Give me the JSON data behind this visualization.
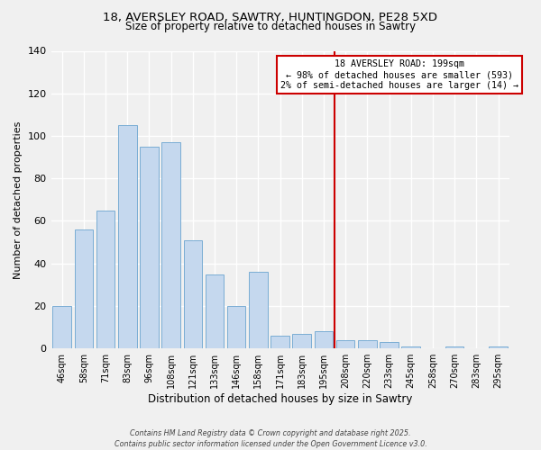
{
  "title_line1": "18, AVERSLEY ROAD, SAWTRY, HUNTINGDON, PE28 5XD",
  "title_line2": "Size of property relative to detached houses in Sawtry",
  "xlabel": "Distribution of detached houses by size in Sawtry",
  "ylabel": "Number of detached properties",
  "categories": [
    "46sqm",
    "58sqm",
    "71sqm",
    "83sqm",
    "96sqm",
    "108sqm",
    "121sqm",
    "133sqm",
    "146sqm",
    "158sqm",
    "171sqm",
    "183sqm",
    "195sqm",
    "208sqm",
    "220sqm",
    "233sqm",
    "245sqm",
    "258sqm",
    "270sqm",
    "283sqm",
    "295sqm"
  ],
  "values": [
    20,
    56,
    65,
    105,
    95,
    97,
    51,
    35,
    20,
    36,
    6,
    7,
    8,
    4,
    4,
    3,
    1,
    0,
    1,
    0,
    1
  ],
  "bar_color": "#c5d8ee",
  "bar_edge_color": "#7aadd4",
  "vline_color": "#cc0000",
  "annotation_title": "18 AVERSLEY ROAD: 199sqm",
  "annotation_line1": "← 98% of detached houses are smaller (593)",
  "annotation_line2": "2% of semi-detached houses are larger (14) →",
  "annotation_box_color": "white",
  "annotation_box_edge_color": "#cc0000",
  "ylim": [
    0,
    140
  ],
  "yticks": [
    0,
    20,
    40,
    60,
    80,
    100,
    120,
    140
  ],
  "footer_line1": "Contains HM Land Registry data © Crown copyright and database right 2025.",
  "footer_line2": "Contains public sector information licensed under the Open Government Licence v3.0.",
  "background_color": "#f0f0f0",
  "grid_color": "white"
}
